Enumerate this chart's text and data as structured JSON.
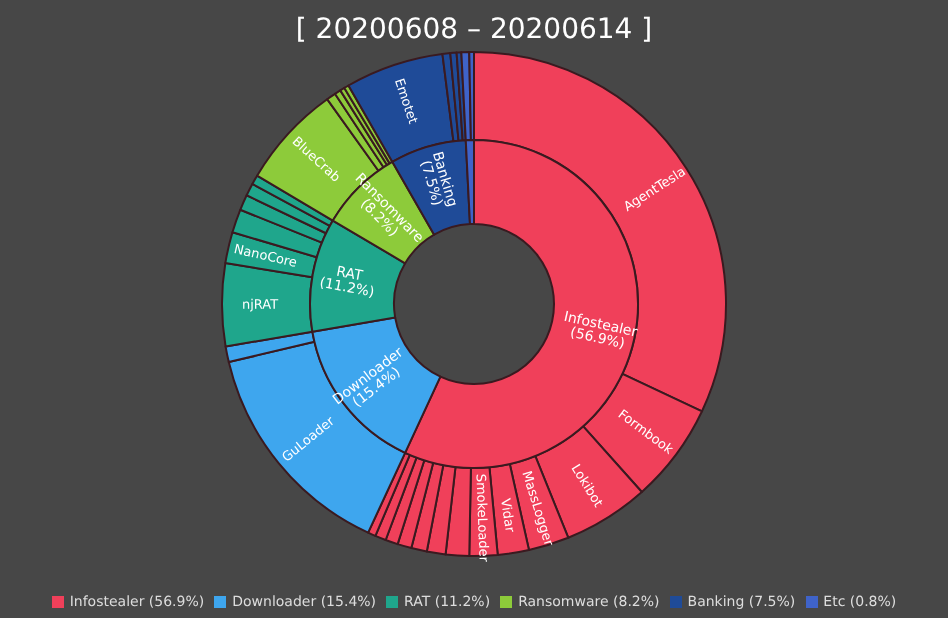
{
  "chart_data": [
    {
      "type": "donut",
      "title": "[ 20200608 – 20200614 ]",
      "categories": [
        "Infostealer",
        "Downloader",
        "RAT",
        "Ransomware",
        "Banking",
        "Etc"
      ],
      "values": [
        56.9,
        15.4,
        11.2,
        8.2,
        7.5,
        0.8
      ],
      "value_labels": [
        "(56.9%)",
        "(15.4%)",
        "(11.2%)",
        "(8.2%)",
        "(7.5%)",
        "(0.8%)"
      ],
      "colors": [
        "#f0405a",
        "#3ea6ee",
        "#1fa68c",
        "#8dcb3a",
        "#1f4b98",
        "#3f63c9"
      ],
      "legend": "bottom"
    },
    {
      "type": "donut",
      "categories": [
        "AgentTesla",
        "Formbook",
        "Lokibot",
        "MassLogger",
        "Vidar",
        "SmokeLoader",
        null,
        null,
        null,
        null,
        null,
        null,
        null,
        "GuLoader",
        null,
        "njRAT",
        "NanoCore",
        null,
        null,
        null,
        null,
        "BlueCrab",
        null,
        null,
        null,
        null,
        "Emotet",
        null,
        null,
        null,
        null,
        null
      ],
      "values": [
        32,
        6.4,
        5.5,
        2.6,
        2.0,
        1.8,
        1.5,
        1.2,
        1.0,
        0.9,
        0.8,
        0.7,
        0.5,
        14.4,
        1.0,
        5.3,
        2.0,
        1.5,
        1.0,
        0.8,
        0.6,
        6.6,
        0.6,
        0.4,
        0.3,
        0.3,
        6.3,
        0.5,
        0.4,
        0.3,
        0.5,
        0.3
      ],
      "colors": [
        "#f0405a",
        "#f0405a",
        "#f0405a",
        "#f0405a",
        "#f0405a",
        "#f0405a",
        "#f0405a",
        "#f0405a",
        "#f0405a",
        "#f0405a",
        "#f0405a",
        "#f0405a",
        "#f0405a",
        "#3ea6ee",
        "#3ea6ee",
        "#1fa68c",
        "#1fa68c",
        "#1fa68c",
        "#1fa68c",
        "#1fa68c",
        "#1fa68c",
        "#8dcb3a",
        "#8dcb3a",
        "#8dcb3a",
        "#8dcb3a",
        "#8dcb3a",
        "#1f4b98",
        "#1f4b98",
        "#1f4b98",
        "#1f4b98",
        "#3f63c9",
        "#3f63c9"
      ]
    }
  ]
}
